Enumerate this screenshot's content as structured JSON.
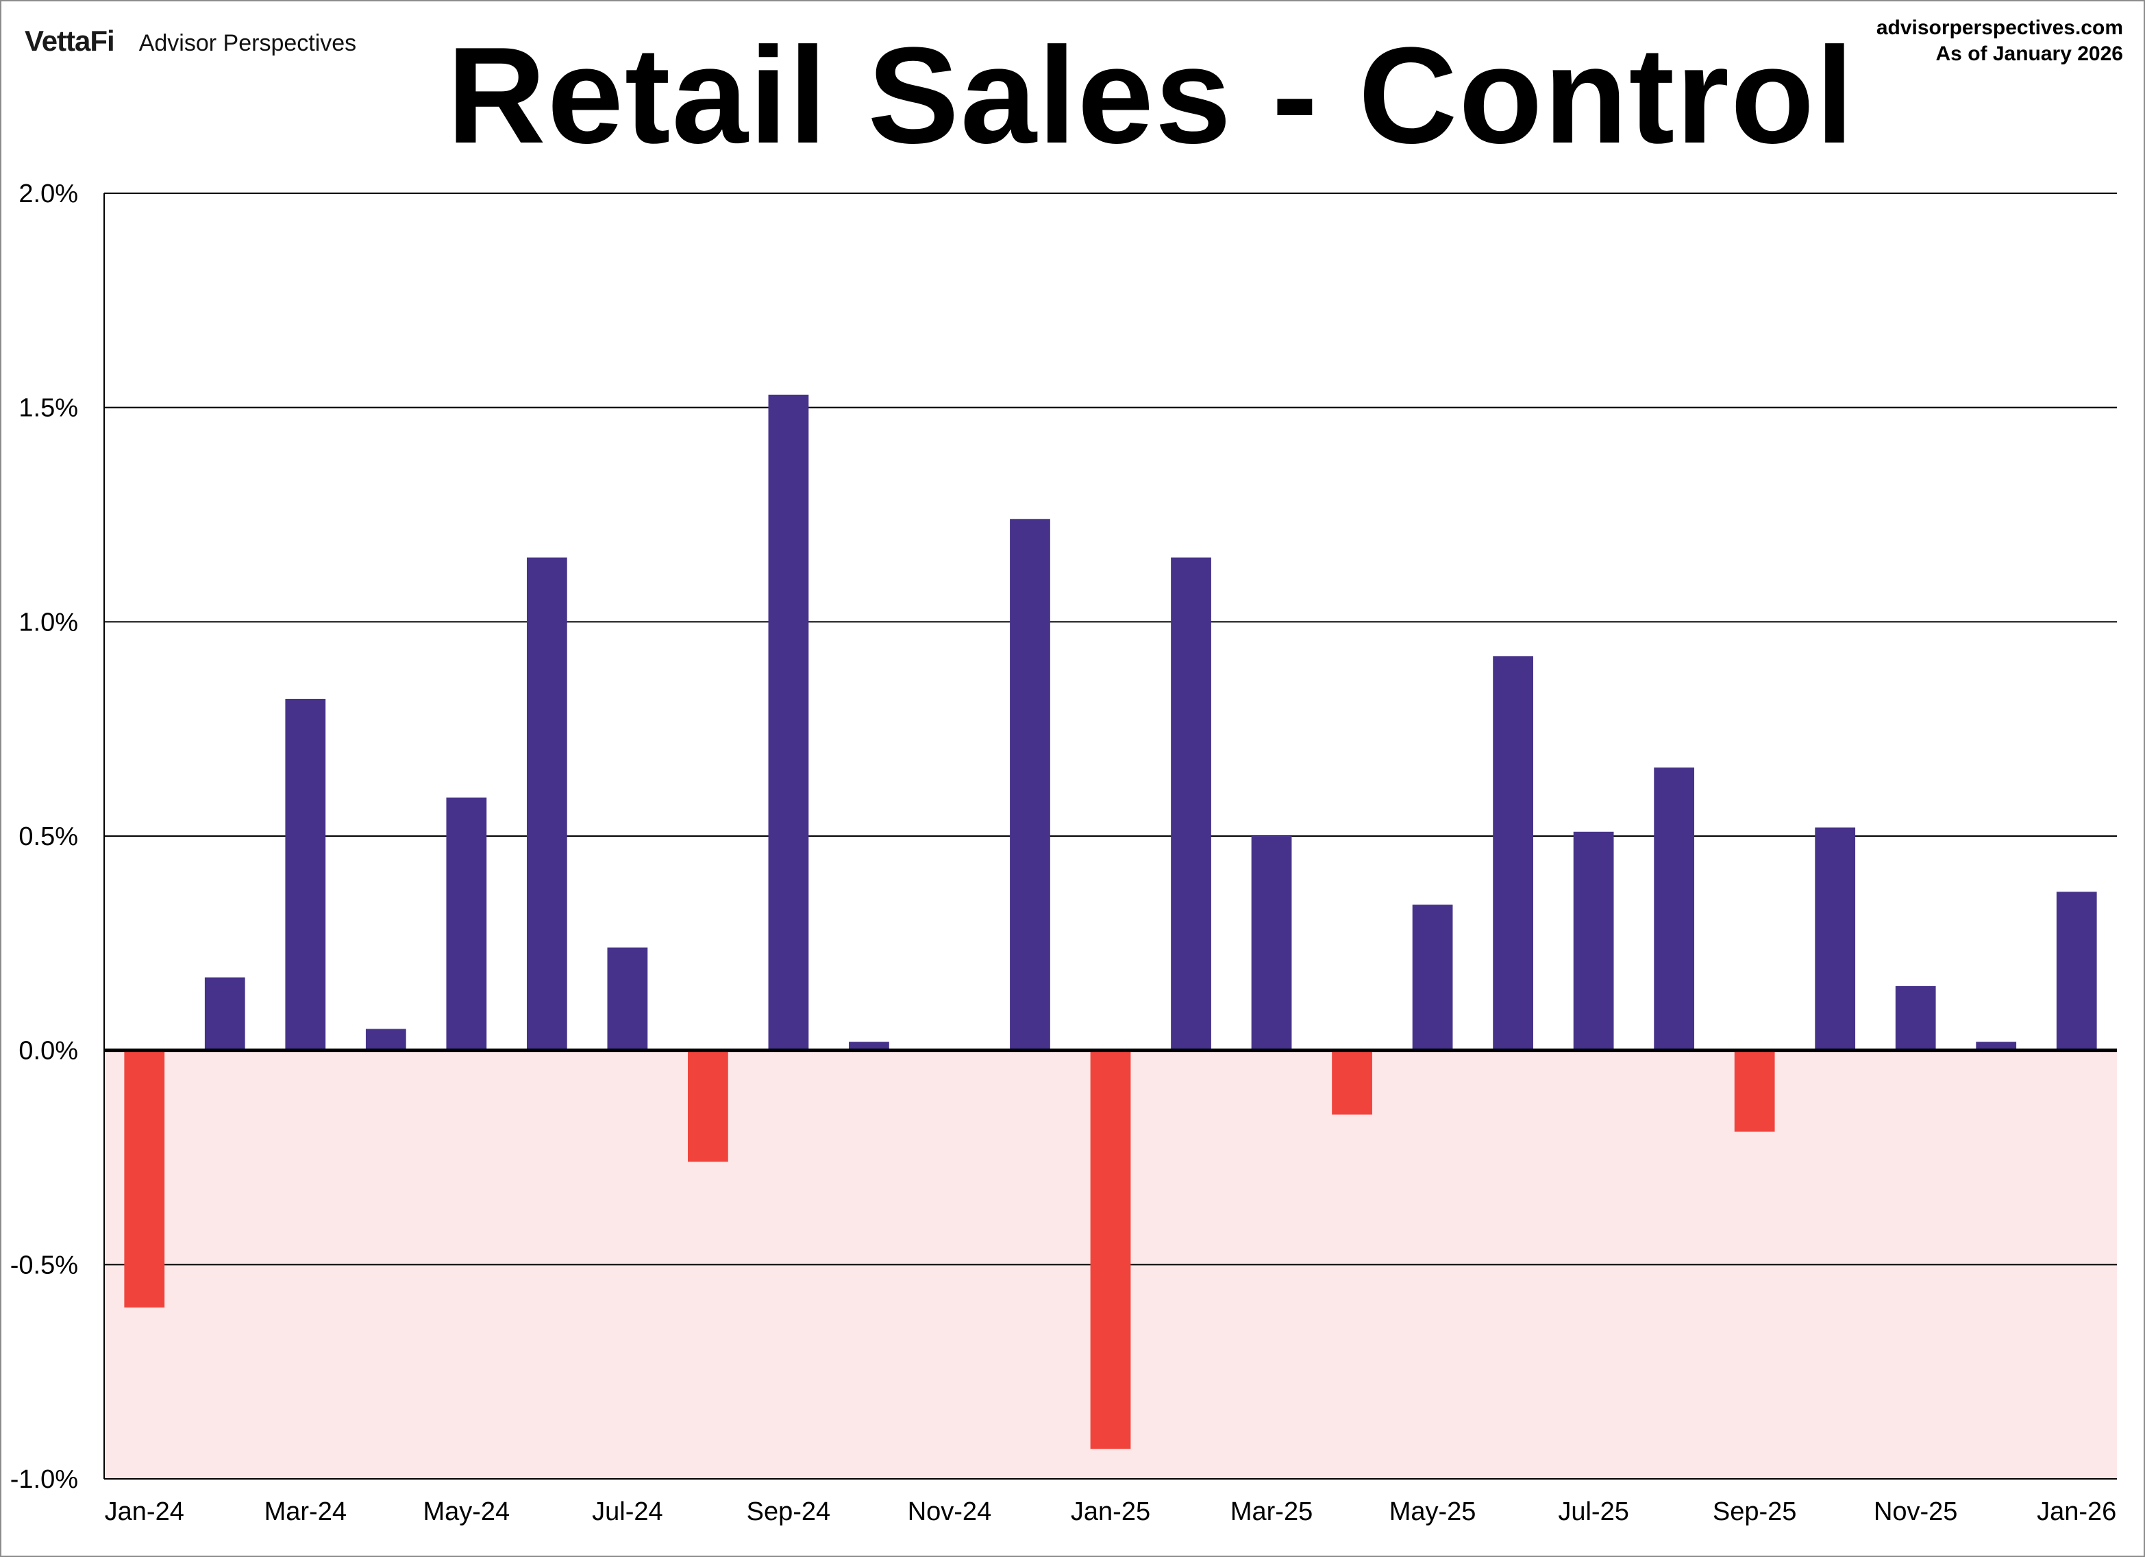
{
  "header": {
    "logo": "VettaFi",
    "brand": "Advisor Perspectives",
    "site": "advisorperspectives.com",
    "as_of": "As of January 2026"
  },
  "chart_data": {
    "type": "bar",
    "title": "Retail Sales - Control",
    "xlabel": "",
    "ylabel": "",
    "ylim": [
      -1.0,
      2.0
    ],
    "yticks": [
      2.0,
      1.5,
      1.0,
      0.5,
      0.0,
      -0.5,
      -1.0
    ],
    "ytick_labels": [
      "2.0%",
      "1.5%",
      "1.0%",
      "0.5%",
      "0.0%",
      "-0.5%",
      "-1.0%"
    ],
    "categories": [
      "Jan-24",
      "Feb-24",
      "Mar-24",
      "Apr-24",
      "May-24",
      "Jun-24",
      "Jul-24",
      "Aug-24",
      "Sep-24",
      "Oct-24",
      "Nov-24",
      "Dec-24",
      "Jan-25",
      "Feb-25",
      "Mar-25",
      "Apr-25",
      "May-25",
      "Jun-25",
      "Jul-25",
      "Aug-25",
      "Sep-25",
      "Oct-25",
      "Nov-25",
      "Dec-25",
      "Jan-26"
    ],
    "values": [
      -0.6,
      0.17,
      0.82,
      0.05,
      0.59,
      1.15,
      0.24,
      -0.26,
      1.53,
      0.02,
      0.0,
      1.24,
      -0.93,
      1.15,
      0.5,
      -0.15,
      0.34,
      0.92,
      0.51,
      0.66,
      -0.19,
      0.52,
      0.15,
      0.02,
      0.37
    ],
    "xtick_labels": [
      "Jan-24",
      "Mar-24",
      "May-24",
      "Jul-24",
      "Sep-24",
      "Nov-24",
      "Jan-25",
      "Mar-25",
      "May-25",
      "Jul-25",
      "Sep-25",
      "Nov-25",
      "Jan-26"
    ],
    "grid": true,
    "colors": {
      "positive": "#46328a",
      "negative": "#f0433b",
      "negative_band": "#fde8e9",
      "grid": "#000000"
    }
  }
}
